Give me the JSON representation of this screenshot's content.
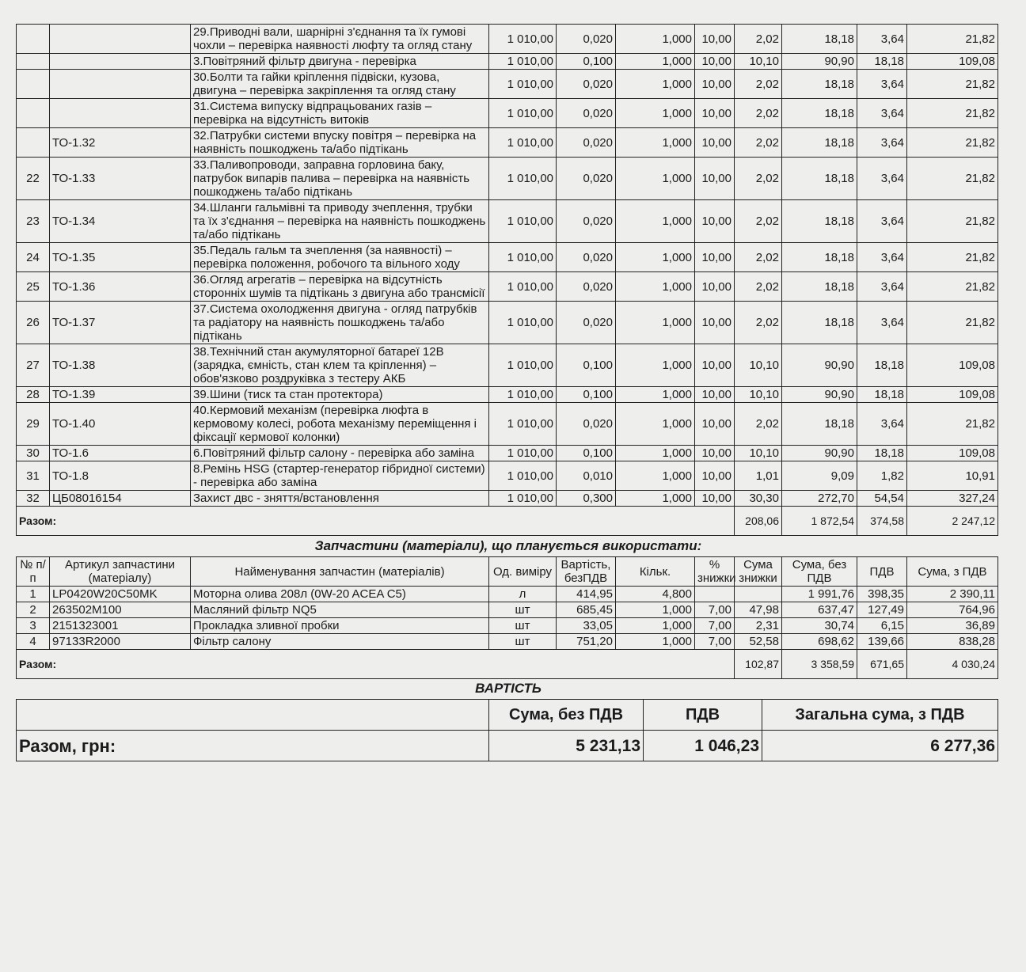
{
  "services": {
    "rows": [
      {
        "name": "29.Приводні вали, шарнірні з'єднання та їх гумові чохли – перевірка наявності люфту та огляд стану",
        "values": [
          "1 010,00",
          "0,020",
          "1,000",
          "10,00",
          "2,02",
          "18,18",
          "3,64",
          "21,82"
        ]
      },
      {
        "name": "3.Повітряний фільтр двигуна - перевірка",
        "values": [
          "1 010,00",
          "0,100",
          "1,000",
          "10,00",
          "10,10",
          "90,90",
          "18,18",
          "109,08"
        ]
      },
      {
        "name": "30.Болти та гайки кріплення підвіски, кузова, двигуна – перевірка закріплення та огляд стану",
        "values": [
          "1 010,00",
          "0,020",
          "1,000",
          "10,00",
          "2,02",
          "18,18",
          "3,64",
          "21,82"
        ]
      },
      {
        "name": "31.Система випуску відпрацьованих газів – перевірка на відсутність витоків",
        "values": [
          "1 010,00",
          "0,020",
          "1,000",
          "10,00",
          "2,02",
          "18,18",
          "3,64",
          "21,82"
        ]
      },
      {
        "code": "ТО-1.32",
        "name": "32.Патрубки системи впуску повітря – перевірка на наявність пошкоджень та/або підтікань",
        "values": [
          "1 010,00",
          "0,020",
          "1,000",
          "10,00",
          "2,02",
          "18,18",
          "3,64",
          "21,82"
        ]
      },
      {
        "no": "22",
        "code": "ТО-1.33",
        "name": "33.Паливопроводи, заправна горловина баку, патрубок випарів палива – перевірка на наявність пошкоджень та/або підтікань",
        "values": [
          "1 010,00",
          "0,020",
          "1,000",
          "10,00",
          "2,02",
          "18,18",
          "3,64",
          "21,82"
        ]
      },
      {
        "no": "23",
        "code": "ТО-1.34",
        "name": "34.Шланги гальмівні та приводу зчеплення, трубки та їх з'єднання – перевірка на наявність пошкоджень та/або підтікань",
        "values": [
          "1 010,00",
          "0,020",
          "1,000",
          "10,00",
          "2,02",
          "18,18",
          "3,64",
          "21,82"
        ]
      },
      {
        "no": "24",
        "code": "ТО-1.35",
        "name": "35.Педаль гальм та зчеплення (за наявності) – перевірка положення, робочого та вільного ходу",
        "values": [
          "1 010,00",
          "0,020",
          "1,000",
          "10,00",
          "2,02",
          "18,18",
          "3,64",
          "21,82"
        ]
      },
      {
        "no": "25",
        "code": "ТО-1.36",
        "name": "36.Огляд агрегатів – перевірка на відсутність сторонніх шумів та підтікань з двигуна або трансмісії",
        "values": [
          "1 010,00",
          "0,020",
          "1,000",
          "10,00",
          "2,02",
          "18,18",
          "3,64",
          "21,82"
        ]
      },
      {
        "no": "26",
        "code": "ТО-1.37",
        "name": "37.Система охолодження двигуна - огляд патрубків та радіатору на наявність пошкоджень та/або підтікань",
        "values": [
          "1 010,00",
          "0,020",
          "1,000",
          "10,00",
          "2,02",
          "18,18",
          "3,64",
          "21,82"
        ]
      },
      {
        "no": "27",
        "code": "ТО-1.38",
        "name": "38.Технічний стан акумуляторної батареї 12В (зарядка, ємність, стан клем та кріплення) – обов'язково роздруківка з тестеру АКБ",
        "values": [
          "1 010,00",
          "0,100",
          "1,000",
          "10,00",
          "10,10",
          "90,90",
          "18,18",
          "109,08"
        ]
      },
      {
        "no": "28",
        "code": "ТО-1.39",
        "name": "39.Шини (тиск та стан протектора)",
        "values": [
          "1 010,00",
          "0,100",
          "1,000",
          "10,00",
          "10,10",
          "90,90",
          "18,18",
          "109,08"
        ]
      },
      {
        "no": "29",
        "code": "ТО-1.40",
        "name": "40.Кермовий механізм (перевірка люфта в кермовому колесі, робота механізму переміщення і фіксації кермової колонки)",
        "values": [
          "1 010,00",
          "0,020",
          "1,000",
          "10,00",
          "2,02",
          "18,18",
          "3,64",
          "21,82"
        ]
      },
      {
        "no": "30",
        "code": "ТО-1.6",
        "name": "6.Повітряний фільтр салону - перевірка або заміна",
        "values": [
          "1 010,00",
          "0,100",
          "1,000",
          "10,00",
          "10,10",
          "90,90",
          "18,18",
          "109,08"
        ]
      },
      {
        "no": "31",
        "code": "ТО-1.8",
        "name": "8.Ремінь HSG (стартер-генератор гібридної системи) - перевірка або заміна",
        "values": [
          "1 010,00",
          "0,010",
          "1,000",
          "10,00",
          "1,01",
          "9,09",
          "1,82",
          "10,91"
        ]
      },
      {
        "no": "32",
        "code": "ЦБ08016154",
        "name": "Захист двс - зняття/встановлення",
        "values": [
          "1 010,00",
          "0,300",
          "1,000",
          "10,00",
          "30,30",
          "272,70",
          "54,54",
          "327,24"
        ]
      }
    ],
    "total": {
      "label": "Разом:",
      "values": [
        "208,06",
        "1 872,54",
        "374,58",
        "2 247,12"
      ]
    }
  },
  "parts": {
    "heading": "Запчастини (матеріали), що планується використати:",
    "headers": [
      "№ п/п",
      "Артикул запчастини (матеріалу)",
      "Найменування запчастин (матеріалів)",
      "Од. виміру",
      "Вартість, безПДВ",
      "Кільк.",
      "% знижки",
      "Сума знижки",
      "Сума, без ПДВ",
      "ПДВ",
      "Сума, з ПДВ"
    ],
    "rows": [
      [
        "1",
        "LP0420W20C50MK",
        "Моторна олива 208л (0W-20  ACEA C5)",
        "л",
        "414,95",
        "4,800",
        null,
        null,
        "1 991,76",
        "398,35",
        "2 390,11"
      ],
      [
        "2",
        "263502M100",
        "Масляний фільтр NQ5",
        "шт",
        "685,45",
        "1,000",
        "7,00",
        "47,98",
        "637,47",
        "127,49",
        "764,96"
      ],
      [
        "3",
        "2151323001",
        "Прокладка зливної пробки",
        "шт",
        "33,05",
        "1,000",
        "7,00",
        "2,31",
        "30,74",
        "6,15",
        "36,89"
      ],
      [
        "4",
        "97133R2000",
        "Фільтр салону",
        "шт",
        "751,20",
        "1,000",
        "7,00",
        "52,58",
        "698,62",
        "139,66",
        "838,28"
      ]
    ],
    "total": {
      "label": "Разом:",
      "values": [
        "102,87",
        "3 358,59",
        "671,65",
        "4 030,24"
      ]
    }
  },
  "cost": {
    "heading": "ВАРТІСТЬ",
    "headers": [
      "Сума, без ПДВ",
      "ПДВ",
      "Загальна сума, з ПДВ"
    ],
    "label": "Разом, грн:",
    "values": [
      "5 231,13",
      "1 046,23",
      "6 277,36"
    ]
  }
}
